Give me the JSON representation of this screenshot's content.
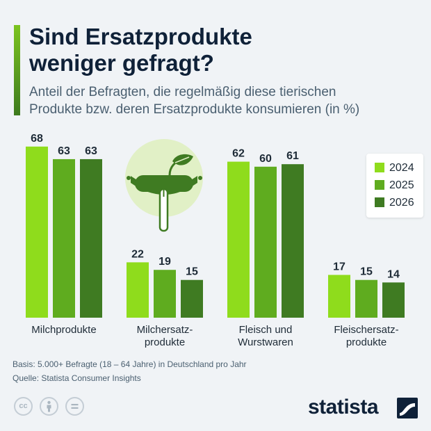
{
  "header": {
    "title_line1": "Sind Ersatzprodukte",
    "title_line2": "weniger gefragt?",
    "subtitle_line1": "Anteil der Befragten, die regelmäßig diese tierischen",
    "subtitle_line2": "Produkte bzw. deren Ersatzprodukte konsumieren (in %)"
  },
  "chart_data": {
    "type": "bar",
    "categories": [
      [
        "Milchprodukte"
      ],
      [
        "Milchersatz-",
        "produkte"
      ],
      [
        "Fleisch und",
        "Wurstwaren"
      ],
      [
        "Fleischersatz-",
        "produkte"
      ]
    ],
    "series": [
      {
        "name": "2024",
        "values": [
          68,
          22,
          62,
          17
        ],
        "color": "#8fdc1c"
      },
      {
        "name": "2025",
        "values": [
          63,
          19,
          60,
          15
        ],
        "color": "#5fac1f"
      },
      {
        "name": "2026",
        "values": [
          63,
          15,
          61,
          14
        ],
        "color": "#3f7b22"
      }
    ],
    "ylim": [
      0,
      75
    ],
    "grid": false,
    "legend_placement": "right",
    "data_labels": true
  },
  "colors": {
    "title": "#0f2138",
    "subtitle": "#4a5f70",
    "background": "#f0f3f6",
    "illustration_circle": "#e1f0c6",
    "illustration_dark": "#3f7b22"
  },
  "icons": [
    "sausage-fork-icon",
    "cc-icon",
    "attribution-icon",
    "no-derivatives-icon",
    "statista-logo-icon"
  ],
  "footer": {
    "basis": "Basis: 5.000+ Befragte (18 – 64 Jahre) in Deutschland pro Jahr",
    "source": "Quelle: Statista Consumer Insights",
    "cc": "cc",
    "logo": "statista"
  }
}
